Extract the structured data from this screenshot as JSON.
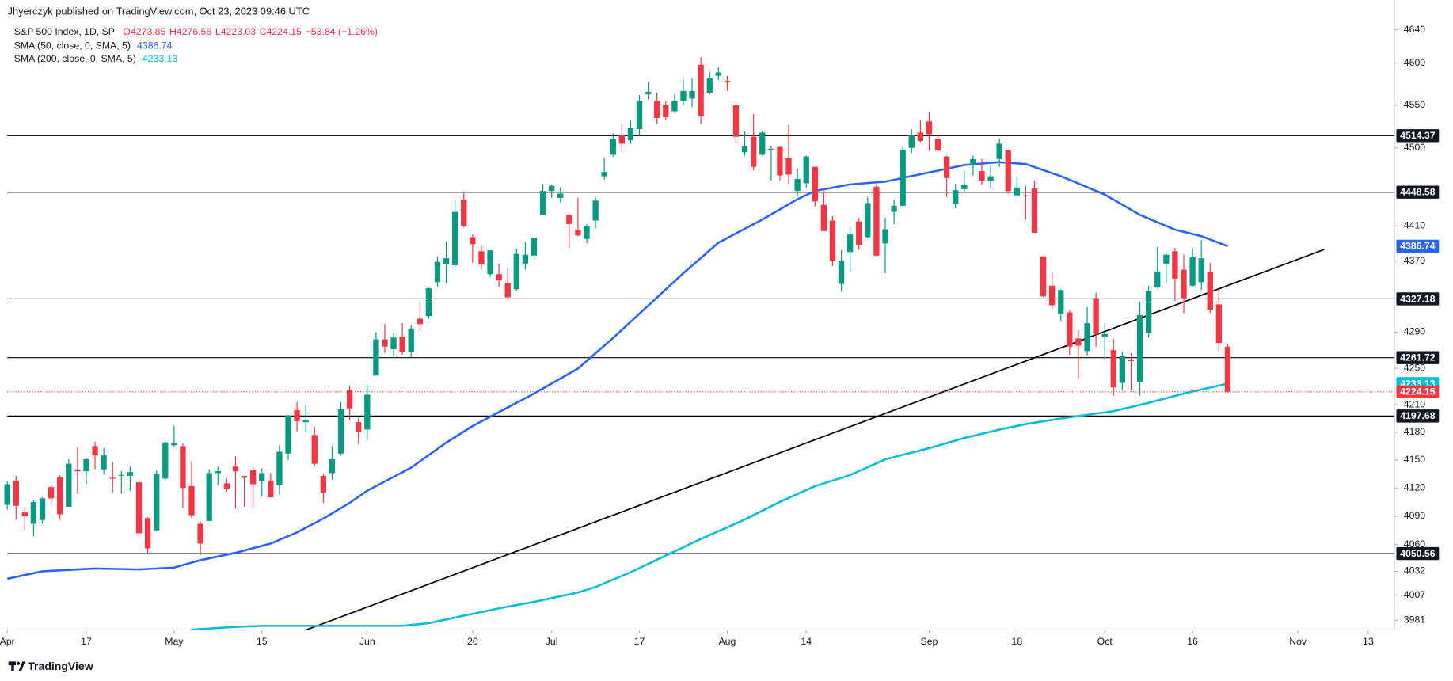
{
  "header": {
    "publisher": "Jhyerczyk published on TradingView.com, Oct 23, 2023 09:46 UTC"
  },
  "footer": {
    "brand": "TradingView"
  },
  "chart_data": {
    "type": "candlestick",
    "title": "S&P 500 Index, 1D, SP",
    "legend_values": [
      "O4273.85",
      "H4276.56",
      "L4223.03",
      "C4224.15",
      "−53.84 (−1.26%)"
    ],
    "up_color": "#089981",
    "down_color": "#f23645",
    "candles": [
      [
        4102,
        4127,
        4097,
        4124
      ],
      [
        4128,
        4133,
        4086,
        4101
      ],
      [
        4094,
        4100,
        4075,
        4090
      ],
      [
        4082,
        4107,
        4069,
        4105
      ],
      [
        4086,
        4110,
        4082,
        4109
      ],
      [
        4121,
        4124,
        4102,
        4109
      ],
      [
        4132,
        4134,
        4086,
        4092
      ],
      [
        4100,
        4151,
        4100,
        4146
      ],
      [
        4140,
        4164,
        4114,
        4138
      ],
      [
        4138,
        4152,
        4124,
        4151
      ],
      [
        4165,
        4170,
        4140,
        4155
      ],
      [
        4140,
        4163,
        4135,
        4155
      ],
      [
        4131,
        4148,
        4115,
        4130
      ],
      [
        4133,
        4138,
        4114,
        4134
      ],
      [
        4133,
        4143,
        4117,
        4137
      ],
      [
        4126,
        4127,
        4071,
        4072
      ],
      [
        4088,
        4089,
        4050,
        4056
      ],
      [
        4075,
        4139,
        4075,
        4135
      ],
      [
        4130,
        4170,
        4127,
        4169
      ],
      [
        4166,
        4187,
        4164,
        4168
      ],
      [
        4165,
        4168,
        4099,
        4120
      ],
      [
        4122,
        4149,
        4088,
        4091
      ],
      [
        4082,
        4084,
        4049,
        4061
      ],
      [
        4085,
        4140,
        4085,
        4136
      ],
      [
        4136,
        4143,
        4123,
        4138
      ],
      [
        4125,
        4130,
        4116,
        4119
      ],
      [
        4143,
        4154,
        4098,
        4138
      ],
      [
        4133,
        4133,
        4100,
        4131
      ],
      [
        4139,
        4143,
        4099,
        4124
      ],
      [
        4127,
        4141,
        4111,
        4136
      ],
      [
        4128,
        4136,
        4110,
        4110
      ],
      [
        4123,
        4166,
        4113,
        4159
      ],
      [
        4157,
        4199,
        4150,
        4198
      ],
      [
        4204,
        4213,
        4181,
        4192
      ],
      [
        4191,
        4210,
        4180,
        4193
      ],
      [
        4177,
        4186,
        4143,
        4146
      ],
      [
        4133,
        4135,
        4104,
        4115
      ],
      [
        4136,
        4165,
        4129,
        4151
      ],
      [
        4157,
        4213,
        4155,
        4205
      ],
      [
        4226,
        4231,
        4193,
        4206
      ],
      [
        4191,
        4196,
        4167,
        4180
      ],
      [
        4183,
        4232,
        4171,
        4221
      ],
      [
        4242,
        4290,
        4242,
        4282
      ],
      [
        4282,
        4299,
        4267,
        4274
      ],
      [
        4271,
        4289,
        4261,
        4284
      ],
      [
        4285,
        4300,
        4265,
        4268
      ],
      [
        4268,
        4298,
        4262,
        4294
      ],
      [
        4305,
        4322,
        4291,
        4299
      ],
      [
        4308,
        4340,
        4305,
        4339
      ],
      [
        4346,
        4375,
        4341,
        4369
      ],
      [
        4366,
        4392,
        4345,
        4373
      ],
      [
        4365,
        4439,
        4363,
        4426
      ],
      [
        4440,
        4449,
        4408,
        4410
      ],
      [
        4397,
        4400,
        4368,
        4389
      ],
      [
        4381,
        4387,
        4360,
        4366
      ],
      [
        4355,
        4382,
        4352,
        4382
      ],
      [
        4355,
        4367,
        4341,
        4348
      ],
      [
        4345,
        4363,
        4328,
        4329
      ],
      [
        4338,
        4384,
        4336,
        4378
      ],
      [
        4367,
        4391,
        4360,
        4377
      ],
      [
        4376,
        4398,
        4372,
        4396
      ],
      [
        4422,
        4458,
        4422,
        4450
      ],
      [
        4450,
        4457,
        4442,
        4456
      ],
      [
        4442,
        4454,
        4437,
        4447
      ],
      [
        4422,
        4423,
        4385,
        4412
      ],
      [
        4405,
        4442,
        4398,
        4399
      ],
      [
        4395,
        4412,
        4390,
        4410
      ],
      [
        4416,
        4443,
        4407,
        4439
      ],
      [
        4467,
        4488,
        4463,
        4472
      ],
      [
        4492,
        4517,
        4490,
        4510
      ],
      [
        4515,
        4528,
        4495,
        4505
      ],
      [
        4509,
        4532,
        4505,
        4523
      ],
      [
        4522,
        4562,
        4514,
        4555
      ],
      [
        4563,
        4578,
        4557,
        4566
      ],
      [
        4555,
        4565,
        4528,
        4535
      ],
      [
        4550,
        4555,
        4532,
        4536
      ],
      [
        4543,
        4563,
        4541,
        4555
      ],
      [
        4555,
        4581,
        4550,
        4567
      ],
      [
        4558,
        4582,
        4548,
        4567
      ],
      [
        4598,
        4607,
        4528,
        4537
      ],
      [
        4565,
        4590,
        4563,
        4582
      ],
      [
        4585,
        4595,
        4580,
        4589
      ],
      [
        4579,
        4585,
        4567,
        4577
      ],
      [
        4550,
        4551,
        4505,
        4513
      ],
      [
        4495,
        4519,
        4491,
        4502
      ],
      [
        4513,
        4540,
        4474,
        4478
      ],
      [
        4492,
        4520,
        4491,
        4518
      ],
      [
        4498,
        4502,
        4462,
        4499
      ],
      [
        4501,
        4502,
        4462,
        4468
      ],
      [
        4488,
        4527,
        4458,
        4469
      ],
      [
        4450,
        4476,
        4444,
        4464
      ],
      [
        4459,
        4491,
        4454,
        4490
      ],
      [
        4478,
        4478,
        4432,
        4438
      ],
      [
        4434,
        4450,
        4404,
        4404
      ],
      [
        4416,
        4421,
        4364,
        4370
      ],
      [
        4344,
        4382,
        4335,
        4370
      ],
      [
        4380,
        4408,
        4358,
        4400
      ],
      [
        4415,
        4419,
        4383,
        4388
      ],
      [
        4397,
        4443,
        4396,
        4436
      ],
      [
        4455,
        4458,
        4375,
        4376
      ],
      [
        4390,
        4419,
        4356,
        4406
      ],
      [
        4426,
        4440,
        4412,
        4433
      ],
      [
        4433,
        4501,
        4432,
        4498
      ],
      [
        4500,
        4522,
        4494,
        4515
      ],
      [
        4518,
        4532,
        4507,
        4508
      ],
      [
        4531,
        4542,
        4497,
        4516
      ],
      [
        4510,
        4514,
        4496,
        4497
      ],
      [
        4490,
        4491,
        4443,
        4465
      ],
      [
        4435,
        4458,
        4430,
        4451
      ],
      [
        4452,
        4473,
        4449,
        4457
      ],
      [
        4480,
        4491,
        4468,
        4487
      ],
      [
        4473,
        4487,
        4457,
        4462
      ],
      [
        4462,
        4479,
        4453,
        4467
      ],
      [
        4487,
        4511,
        4478,
        4505
      ],
      [
        4497,
        4498,
        4447,
        4450
      ],
      [
        4445,
        4466,
        4442,
        4454
      ],
      [
        4445,
        4456,
        4417,
        4444
      ],
      [
        4453,
        4462,
        4402,
        4402
      ],
      [
        4375,
        4376,
        4329,
        4330
      ],
      [
        4342,
        4357,
        4316,
        4320
      ],
      [
        4310,
        4338,
        4302,
        4337
      ],
      [
        4312,
        4314,
        4265,
        4274
      ],
      [
        4283,
        4292,
        4239,
        4275
      ],
      [
        4269,
        4318,
        4264,
        4300
      ],
      [
        4328,
        4334,
        4274,
        4288
      ],
      [
        4285,
        4300,
        4260,
        4288
      ],
      [
        4270,
        4282,
        4220,
        4229
      ],
      [
        4234,
        4268,
        4226,
        4264
      ],
      [
        4259,
        4267,
        4226,
        4258
      ],
      [
        4235,
        4324,
        4220,
        4309
      ],
      [
        4289,
        4342,
        4284,
        4336
      ],
      [
        4340,
        4386,
        4339,
        4358
      ],
      [
        4367,
        4379,
        4346,
        4377
      ],
      [
        4381,
        4385,
        4325,
        4350
      ],
      [
        4360,
        4377,
        4311,
        4328
      ],
      [
        4342,
        4384,
        4341,
        4374
      ],
      [
        4346,
        4394,
        4337,
        4373
      ],
      [
        4357,
        4368,
        4311,
        4315
      ],
      [
        4321,
        4339,
        4269,
        4278
      ],
      [
        4273.85,
        4276.56,
        4223.03,
        4224.15
      ]
    ],
    "series": [
      {
        "name": "SMA (50, close, 0, SMA, 5)",
        "color": "#2962ff",
        "x": [
          0,
          4,
          10,
          15,
          19,
          22,
          26,
          30,
          33,
          36,
          39,
          41,
          46,
          50,
          53,
          57,
          60,
          65,
          69,
          73,
          77,
          81,
          86,
          90,
          92,
          96,
          100,
          105,
          109,
          113,
          116,
          120,
          125,
          129,
          133,
          136,
          139
        ],
        "values": [
          4024.2,
          4032.0,
          4034.9,
          4033.9,
          4035.9,
          4043.6,
          4051.4,
          4061.1,
          4072.9,
          4087.5,
          4104.2,
          4117.1,
          4141.9,
          4168.8,
          4186.8,
          4207.0,
          4222.2,
          4249.7,
          4283.5,
          4319.6,
          4356.1,
          4390.7,
          4417.2,
          4440.5,
          4450.1,
          4457.6,
          4460.8,
          4471.5,
          4480.1,
          4483.4,
          4481.2,
          4467.2,
          4445.9,
          4422.5,
          4405.6,
          4398.2,
          4386.74
        ]
      },
      {
        "name": "SMA (200, close, 0, SMA, 5)",
        "color": "#00bcd4",
        "x": [
          21,
          26,
          29,
          34,
          39,
          45,
          48,
          52,
          56,
          60,
          65,
          67,
          71,
          75,
          79,
          84,
          88,
          92,
          96,
          100,
          105,
          109,
          113,
          116,
          120,
          126,
          130,
          134,
          139
        ],
        "values": [
          3971.4,
          3974.3,
          3975.3,
          3975.3,
          3975.3,
          3975.3,
          3978.1,
          3985.8,
          3993.4,
          4000.1,
          4009.8,
          4015.6,
          4031.0,
          4048.5,
          4066.0,
          4086.5,
          4105.2,
          4122.0,
          4133.9,
          4150.8,
          4162.8,
          4173.8,
          4182.9,
          4188.9,
          4195.0,
          4203.0,
          4212.1,
          4222.2,
          4233.13
        ]
      }
    ],
    "hlines": {
      "color": "#000000",
      "values": [
        4514.37,
        4448.58,
        4327.18,
        4261.72,
        4197.68,
        4050.56
      ]
    },
    "trendline": {
      "color": "#000000",
      "x": [
        34,
        150
      ],
      "values": [
        3971,
        4383
      ]
    },
    "xlim": [
      0,
      158
    ],
    "xticks": [
      {
        "value": 0,
        "label": "Apr"
      },
      {
        "value": 9,
        "label": "17"
      },
      {
        "value": 19,
        "label": "May"
      },
      {
        "value": 29,
        "label": "15"
      },
      {
        "value": 41,
        "label": "Jun"
      },
      {
        "value": 53,
        "label": "20"
      },
      {
        "value": 62,
        "label": "Jul"
      },
      {
        "value": 72,
        "label": "17"
      },
      {
        "value": 82,
        "label": "Aug"
      },
      {
        "value": 91,
        "label": "14"
      },
      {
        "value": 105,
        "label": "Sep"
      },
      {
        "value": 115,
        "label": "18"
      },
      {
        "value": 125,
        "label": "Oct"
      },
      {
        "value": 135,
        "label": "16"
      },
      {
        "value": 147,
        "label": "Nov"
      },
      {
        "value": 155,
        "label": "13"
      }
    ],
    "ylim": [
      3971,
      4676
    ],
    "yticks": [
      4640,
      4600,
      4550,
      4500,
      4410,
      4370,
      4290,
      4250,
      4210,
      4180,
      4150,
      4120,
      4090,
      4060,
      4032,
      4007,
      3981
    ],
    "log_scale": true,
    "grid": false
  }
}
